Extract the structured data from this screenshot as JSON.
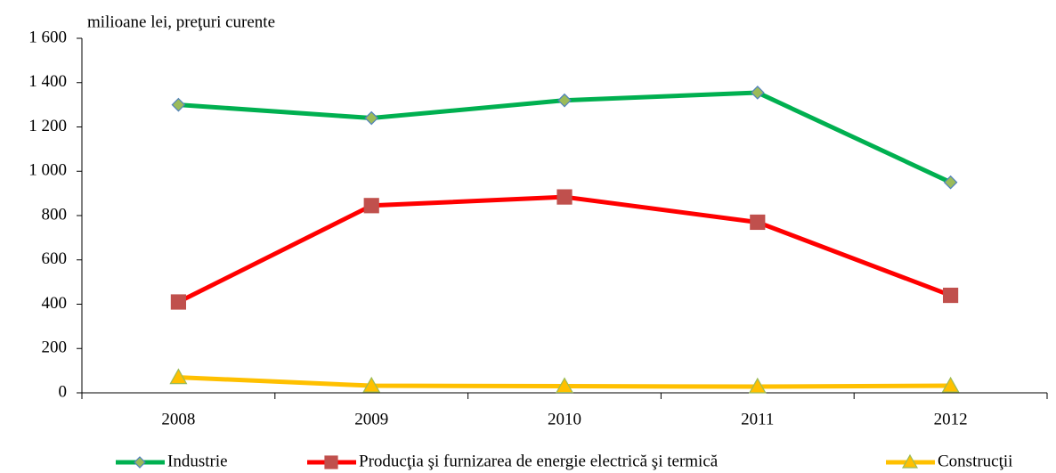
{
  "chart_data": {
    "type": "line",
    "y_axis_label": "milioane lei, preţuri curente",
    "categories": [
      "2008",
      "2009",
      "2010",
      "2011",
      "2012"
    ],
    "series": [
      {
        "name": "Industrie",
        "color": "#00b050",
        "marker": "diamond",
        "marker_fill": "#9bbb59",
        "marker_stroke": "#4f81bd",
        "values": [
          1300,
          1240,
          1320,
          1355,
          950
        ]
      },
      {
        "name": "Producţia şi furnizarea de energie electrică şi termică",
        "color": "#ff0000",
        "marker": "square",
        "marker_fill": "#c0504d",
        "marker_stroke": "#c0504d",
        "values": [
          410,
          845,
          884,
          770,
          440
        ]
      },
      {
        "name": "Construcţii",
        "color": "#ffc000",
        "marker": "triangle",
        "marker_fill": "#ffc000",
        "marker_stroke": "#9bbb59",
        "values": [
          70,
          32,
          30,
          28,
          32
        ]
      }
    ],
    "ylim": [
      0,
      1600
    ],
    "yticks": [
      0,
      200,
      400,
      600,
      800,
      {
        "value": 1000,
        "label": "1 000"
      },
      {
        "value": 1200,
        "label": "1 200"
      },
      {
        "value": 1400,
        "label": "1 400"
      },
      {
        "value": 1600,
        "label": "1 600"
      }
    ],
    "grid": false,
    "legend": "bottom"
  }
}
